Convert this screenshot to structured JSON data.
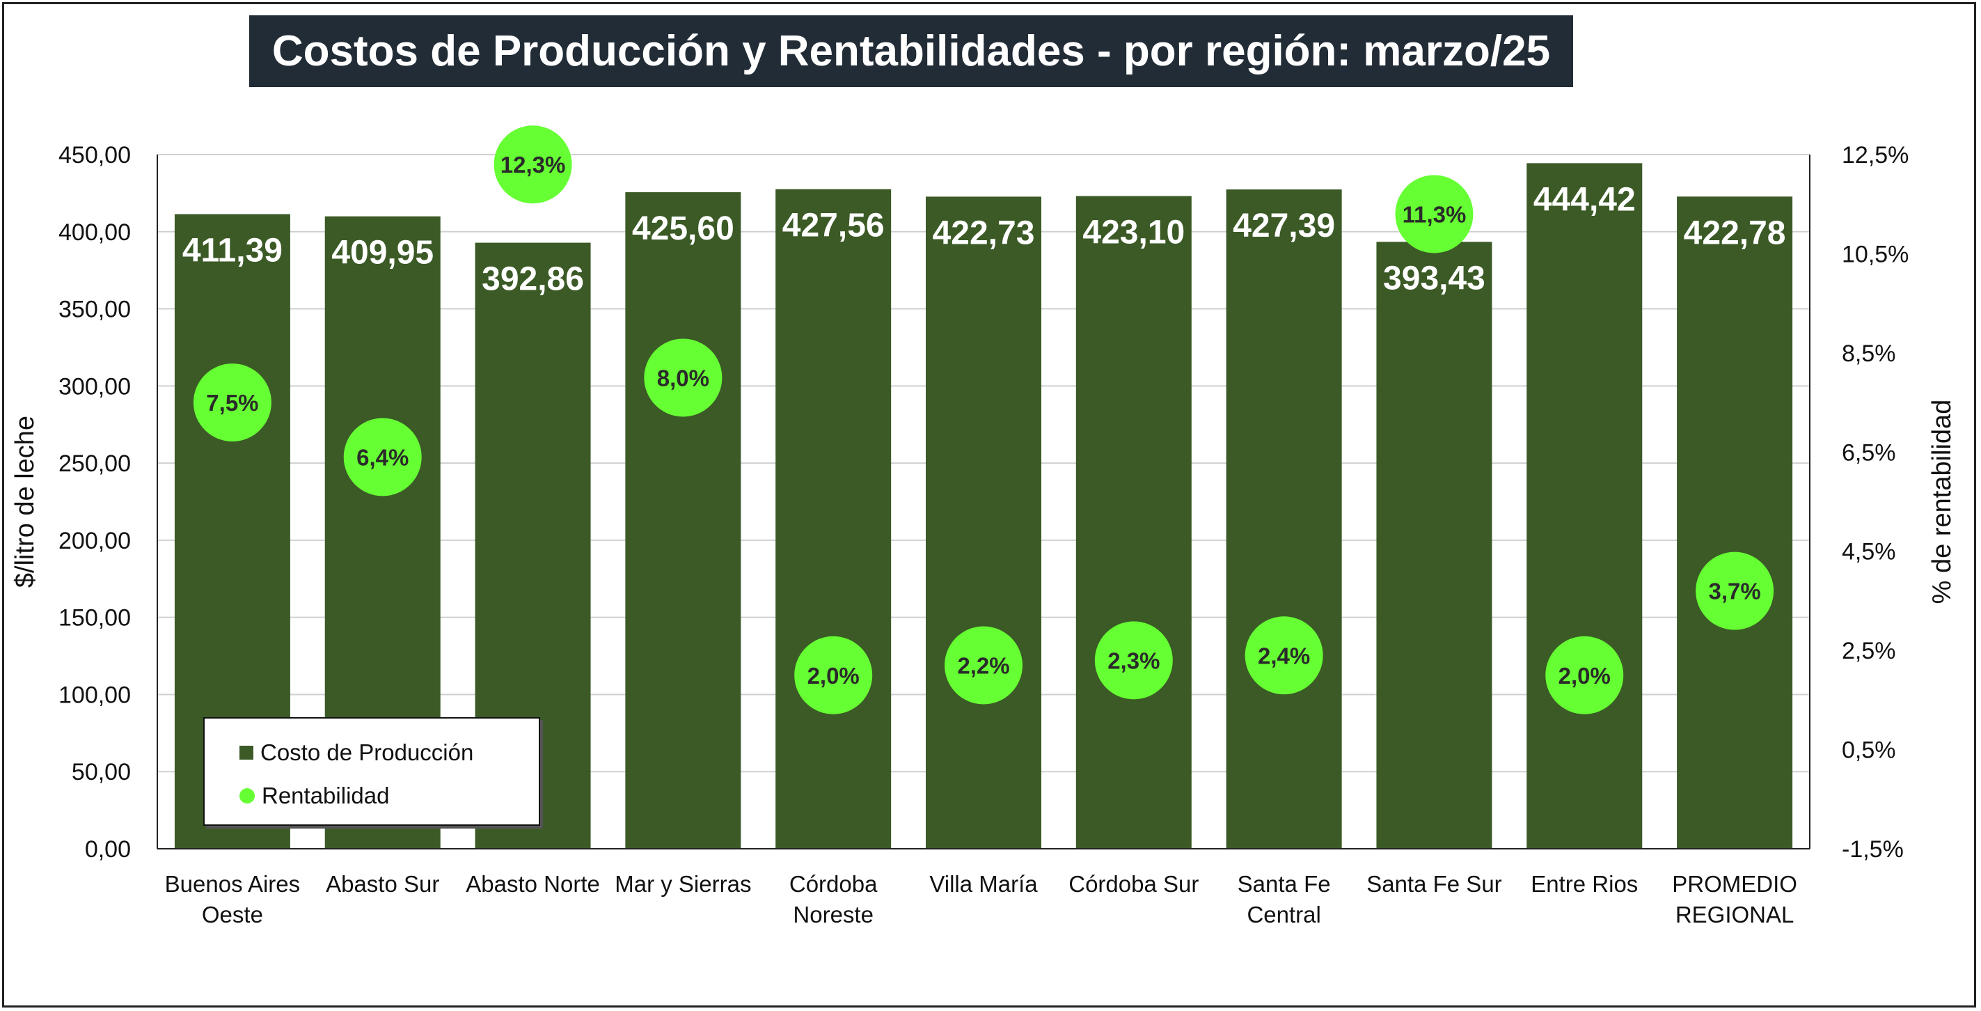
{
  "chart_data": {
    "type": "bar",
    "title": "Costos de Producción y Rentabilidades - por región: marzo/25",
    "categories": [
      [
        "Buenos Aires",
        "Oeste"
      ],
      [
        "Abasto Sur"
      ],
      [
        "Abasto Norte"
      ],
      [
        "Mar y Sierras"
      ],
      [
        "Córdoba",
        "Noreste"
      ],
      [
        "Villa María"
      ],
      [
        "Córdoba Sur"
      ],
      [
        "Santa Fe",
        "Central"
      ],
      [
        "Santa Fe Sur"
      ],
      [
        "Entre Rios"
      ],
      [
        "PROMEDIO",
        "REGIONAL"
      ]
    ],
    "series": [
      {
        "name": "Costo de Producción",
        "axis": "left",
        "values": [
          411.39,
          409.95,
          392.86,
          425.6,
          427.56,
          422.73,
          423.1,
          427.39,
          393.43,
          444.42,
          422.78
        ],
        "labels": [
          "411,39",
          "409,95",
          "392,86",
          "425,60",
          "427,56",
          "422,73",
          "423,10",
          "427,39",
          "393,43",
          "444,42",
          "422,78"
        ],
        "color": "#3b5a26"
      },
      {
        "name": "Rentabilidad",
        "axis": "right",
        "values": [
          7.5,
          6.4,
          12.3,
          8.0,
          2.0,
          2.2,
          2.3,
          2.4,
          11.3,
          2.0,
          3.7
        ],
        "labels": [
          "7,5%",
          "6,4%",
          "12,3%",
          "8,0%",
          "2,0%",
          "2,2%",
          "2,3%",
          "2,4%",
          "11,3%",
          "2,0%",
          "3,7%"
        ],
        "color": "#66ff33"
      }
    ],
    "ylabel": "$/litro de leche",
    "ylim": [
      0,
      450
    ],
    "yticks": [
      "0,00",
      "50,00",
      "100,00",
      "150,00",
      "200,00",
      "250,00",
      "300,00",
      "350,00",
      "400,00",
      "450,00"
    ],
    "y2label": "% de rentabilidad",
    "y2lim": [
      -1.5,
      12.5
    ],
    "y2ticks": [
      "-1,5%",
      "0,5%",
      "2,5%",
      "4,5%",
      "6,5%",
      "8,5%",
      "10,5%",
      "12,5%"
    ],
    "grid": true,
    "legend_position": "bottom-left"
  },
  "legend": {
    "bar_label": "Costo de Producción",
    "dot_label": "Rentabilidad"
  }
}
